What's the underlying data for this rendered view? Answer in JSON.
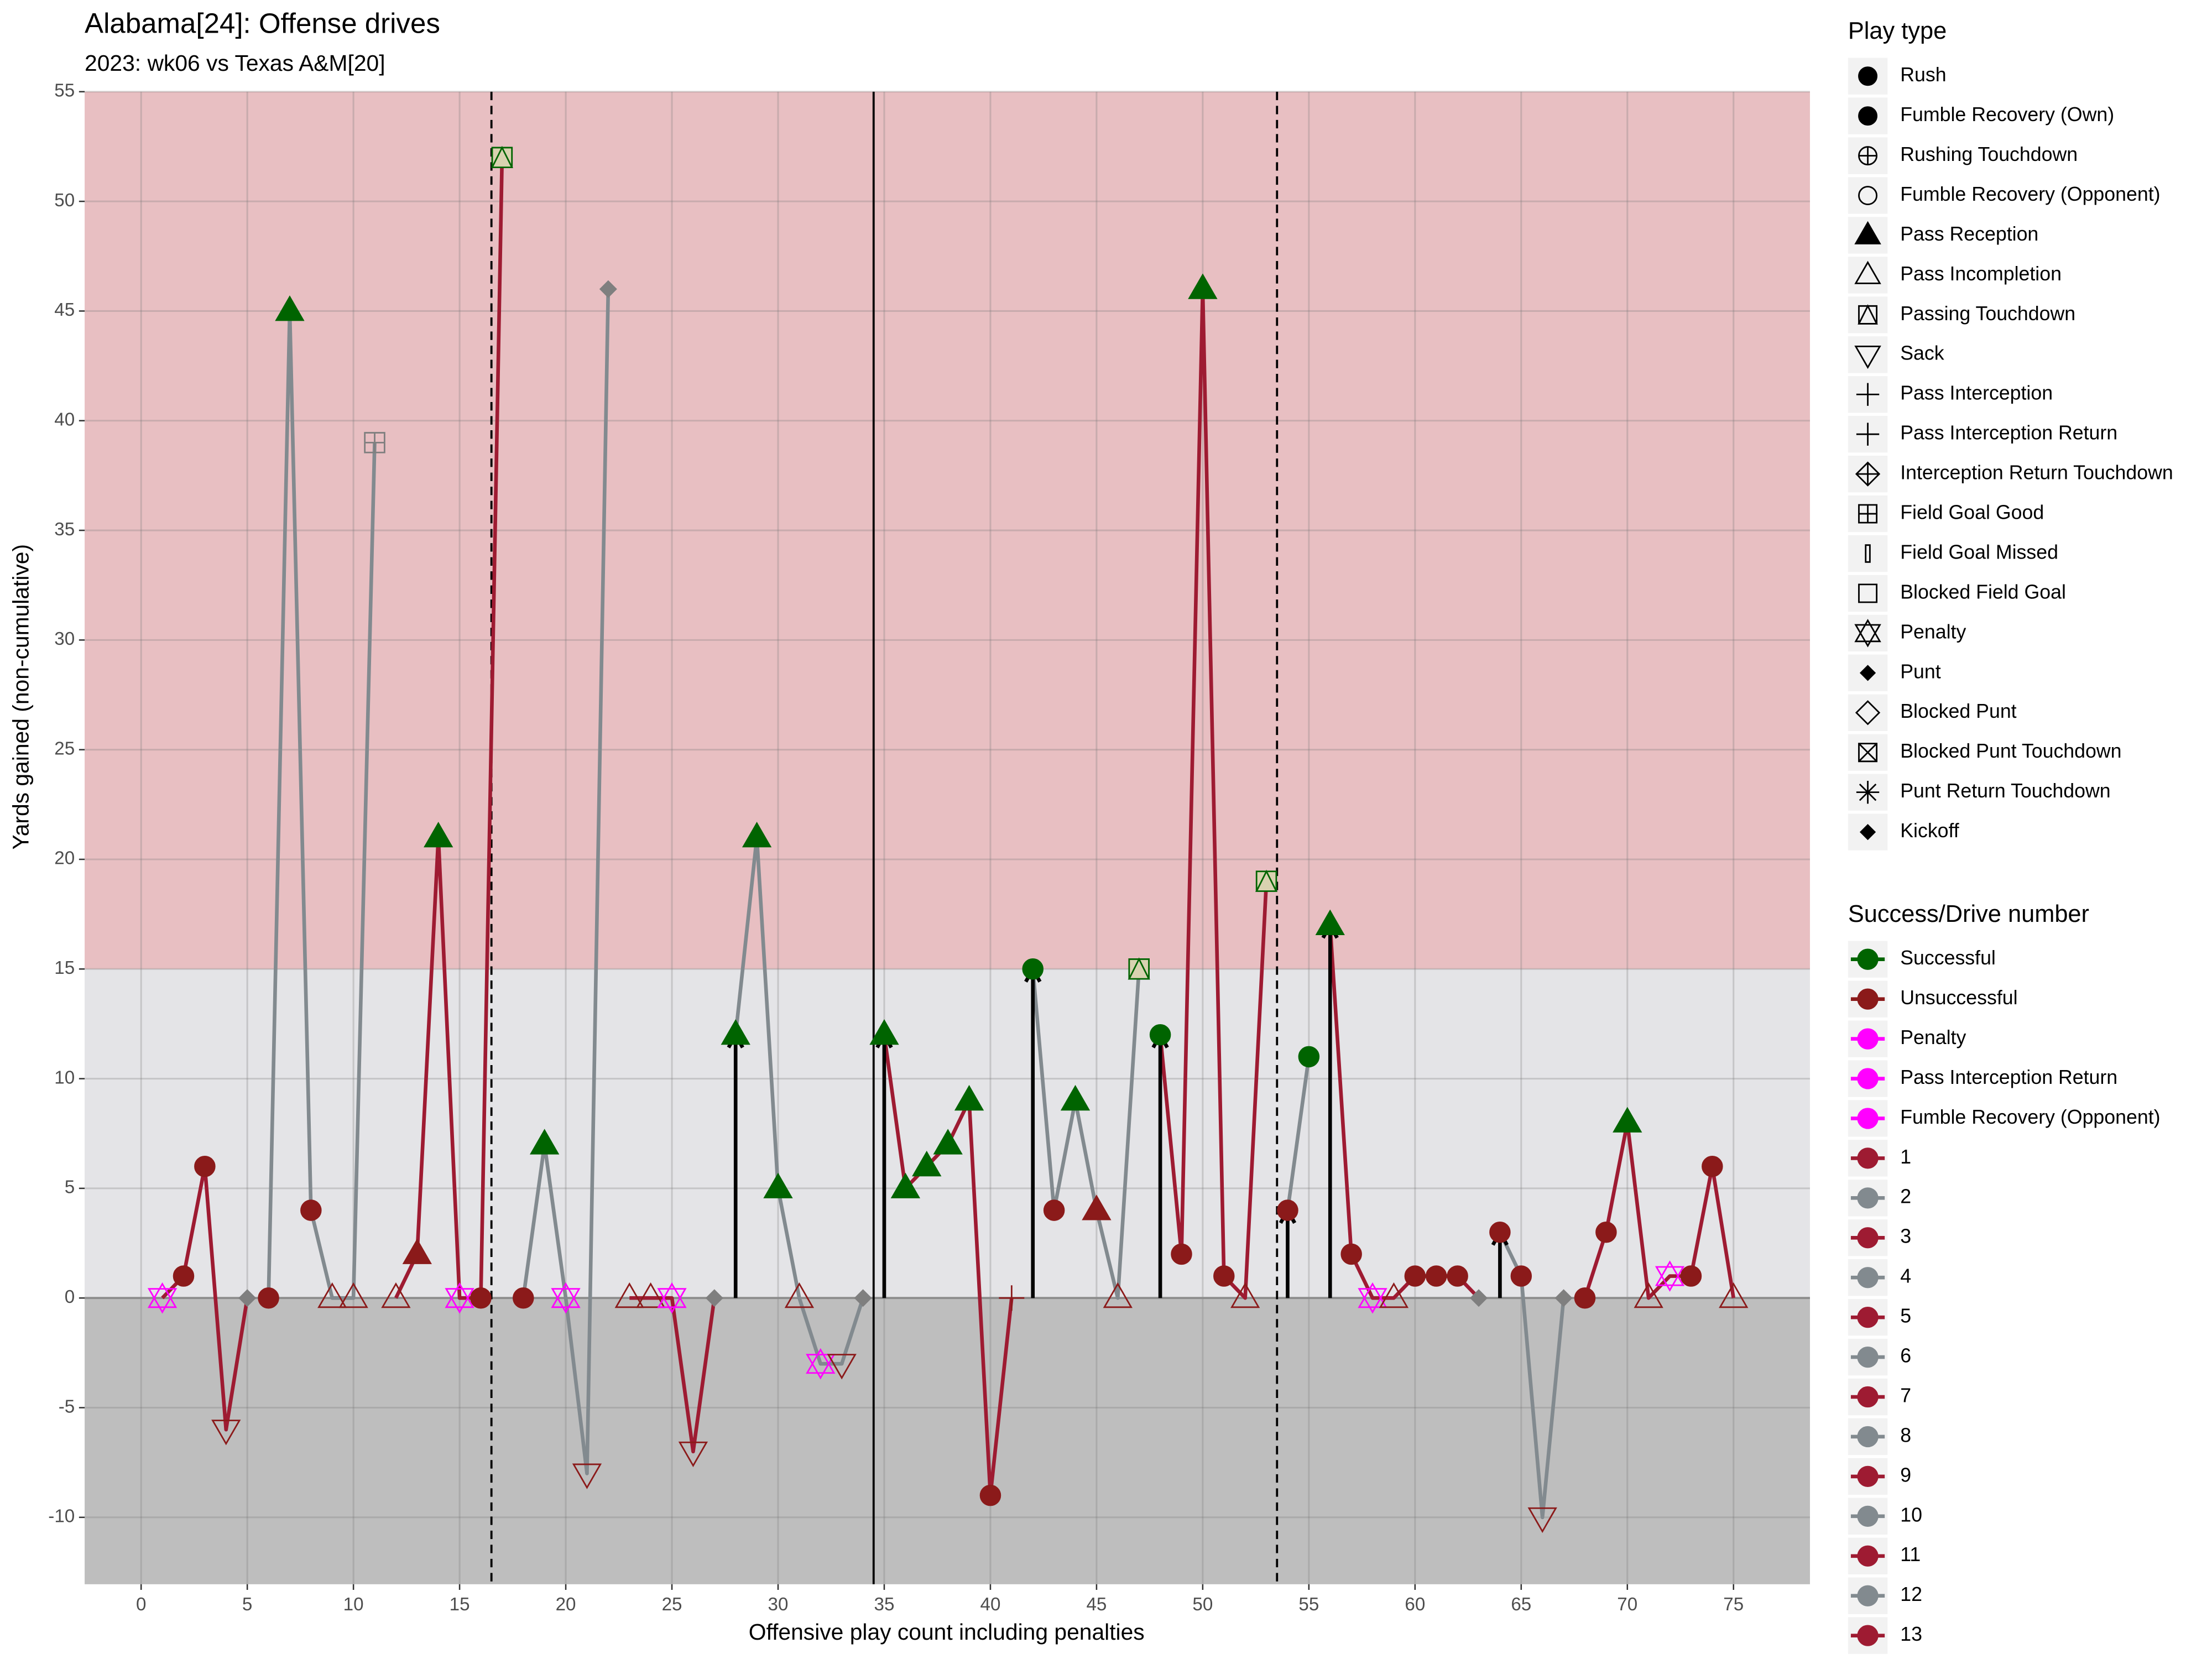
{
  "chart_data": {
    "type": "scatter",
    "title": "Alabama[24]: Offense drives",
    "subtitle": "2023: wk06 vs Texas A&M[20]",
    "x_label": "Offensive play count including penalties",
    "y_label": "Yards gained (non-cumulative)",
    "xlim": [
      -2.66,
      78.6
    ],
    "ylim": [
      -13.05,
      55
    ],
    "xticks": [
      0,
      5,
      10,
      15,
      20,
      25,
      30,
      35,
      40,
      45,
      50,
      55,
      60,
      65,
      70,
      75
    ],
    "yticks": [
      -10,
      -5,
      0,
      5,
      10,
      15,
      20,
      25,
      30,
      35,
      40,
      45,
      50,
      55
    ],
    "grid": true,
    "zones": [
      {
        "from": 15,
        "to": 55,
        "color": "#e8bfc2"
      },
      {
        "from": 0,
        "to": 15,
        "color": "#e4e4e7"
      },
      {
        "from": -13.05,
        "to": 0,
        "color": "#bebebe"
      }
    ],
    "quarter_lines": [
      16.5,
      53.5
    ],
    "half_line": 34.5,
    "arrows": [
      28,
      35,
      42,
      48,
      54,
      56,
      64
    ],
    "neutral_color": "#7f7f7f",
    "x": [
      1,
      2,
      3,
      4,
      5,
      6,
      7,
      8,
      9,
      10,
      11,
      12,
      13,
      14,
      15,
      16,
      17,
      18,
      19,
      20,
      21,
      22,
      23,
      24,
      25,
      26,
      27,
      28,
      29,
      30,
      31,
      32,
      33,
      34,
      35,
      36,
      37,
      38,
      39,
      40,
      41,
      42,
      43,
      44,
      45,
      46,
      47,
      48,
      49,
      50,
      51,
      52,
      53,
      54,
      55,
      56,
      57,
      58,
      59,
      60,
      61,
      62,
      63,
      64,
      65,
      66,
      67,
      68,
      69,
      70,
      71,
      72,
      73,
      74,
      75
    ],
    "values": [
      0,
      1,
      6,
      -6,
      0,
      0,
      45,
      4,
      0,
      0,
      39,
      0,
      2,
      21,
      0,
      0,
      52,
      0,
      7,
      0,
      -8,
      46,
      0,
      0,
      0,
      -7,
      0,
      12,
      21,
      5,
      0,
      -3,
      -3,
      0,
      12,
      5,
      6,
      7,
      9,
      -9,
      0,
      15,
      4,
      9,
      4,
      0,
      15,
      12,
      2,
      46,
      1,
      0,
      19,
      4,
      11,
      17,
      2,
      0,
      0,
      1,
      1,
      1,
      0,
      3,
      1,
      -10,
      0,
      0,
      3,
      8,
      0,
      1,
      1,
      6,
      0
    ],
    "drive": [
      1,
      1,
      1,
      1,
      1,
      2,
      2,
      2,
      2,
      2,
      2,
      3,
      3,
      3,
      3,
      3,
      3,
      4,
      4,
      4,
      4,
      4,
      5,
      5,
      5,
      5,
      5,
      6,
      6,
      6,
      6,
      6,
      6,
      6,
      7,
      7,
      7,
      7,
      7,
      7,
      7,
      8,
      8,
      8,
      8,
      8,
      8,
      9,
      9,
      9,
      9,
      9,
      9,
      10,
      10,
      11,
      11,
      11,
      11,
      11,
      11,
      11,
      11,
      12,
      12,
      12,
      12,
      13,
      13,
      13,
      13,
      13,
      13,
      13,
      13
    ],
    "play_type": [
      "Penalty",
      "Rush",
      "Rush",
      "Sack",
      "Punt",
      "Rush",
      "Pass Reception",
      "Rush",
      "Pass Incompletion",
      "Pass Incompletion",
      "Field Goal Good",
      "Pass Incompletion",
      "Pass Reception",
      "Pass Reception",
      "Penalty",
      "Rush",
      "Passing Touchdown",
      "Rush",
      "Pass Reception",
      "Penalty",
      "Sack",
      "Punt",
      "Pass Incompletion",
      "Pass Incompletion",
      "Penalty",
      "Sack",
      "Punt",
      "Pass Reception",
      "Pass Reception",
      "Pass Reception",
      "Pass Incompletion",
      "Penalty",
      "Sack",
      "Punt",
      "Pass Reception",
      "Pass Reception",
      "Pass Reception",
      "Pass Reception",
      "Pass Reception",
      "Rush",
      "Pass Interception",
      "Rush",
      "Rush",
      "Pass Reception",
      "Pass Reception",
      "Pass Incompletion",
      "Passing Touchdown",
      "Rush",
      "Rush",
      "Pass Reception",
      "Rush",
      "Pass Incompletion",
      "Passing Touchdown",
      "Rush",
      "Rush",
      "Pass Reception",
      "Rush",
      "Penalty",
      "Pass Incompletion",
      "Rush",
      "Rush",
      "Rush",
      "Punt",
      "Rush",
      "Rush",
      "Sack",
      "Punt",
      "Rush",
      "Rush",
      "Pass Reception",
      "Pass Incompletion",
      "Penalty",
      "Rush",
      "Rush",
      "Pass Incompletion"
    ],
    "outcome": [
      "Penalty",
      "Unsuccessful",
      "Unsuccessful",
      "Unsuccessful",
      null,
      "Unsuccessful",
      "Successful",
      "Unsuccessful",
      "Unsuccessful",
      "Unsuccessful",
      null,
      "Unsuccessful",
      "Unsuccessful",
      "Successful",
      "Penalty",
      "Unsuccessful",
      "Successful",
      "Unsuccessful",
      "Successful",
      "Penalty",
      "Unsuccessful",
      null,
      "Unsuccessful",
      "Unsuccessful",
      "Penalty",
      "Unsuccessful",
      null,
      "Successful",
      "Successful",
      "Successful",
      "Unsuccessful",
      "Penalty",
      "Unsuccessful",
      null,
      "Successful",
      "Successful",
      "Successful",
      "Successful",
      "Successful",
      "Unsuccessful",
      "Unsuccessful",
      "Successful",
      "Unsuccessful",
      "Successful",
      "Unsuccessful",
      "Unsuccessful",
      "Successful",
      "Successful",
      "Unsuccessful",
      "Successful",
      "Unsuccessful",
      "Unsuccessful",
      "Successful",
      "Unsuccessful",
      "Successful",
      "Successful",
      "Unsuccessful",
      "Penalty",
      "Unsuccessful",
      "Unsuccessful",
      "Unsuccessful",
      "Unsuccessful",
      null,
      "Unsuccessful",
      "Unsuccessful",
      "Unsuccessful",
      null,
      "Unsuccessful",
      "Unsuccessful",
      "Successful",
      "Unsuccessful",
      "Penalty",
      "Unsuccessful",
      "Unsuccessful",
      "Unsuccessful"
    ],
    "legend_play_type": {
      "title": "Play type",
      "items": [
        "Rush",
        "Fumble Recovery (Own)",
        "Rushing Touchdown",
        "Fumble Recovery (Opponent)",
        "Pass Reception",
        "Pass Incompletion",
        "Passing Touchdown",
        "Sack",
        "Pass Interception",
        "Pass Interception Return",
        "Interception Return Touchdown",
        "Field Goal Good",
        "Field Goal Missed",
        "Blocked Field Goal",
        "Penalty",
        "Punt",
        "Blocked Punt",
        "Blocked Punt Touchdown",
        "Punt Return Touchdown",
        "Kickoff"
      ]
    },
    "legend_success": {
      "title": "Success/Drive number",
      "items": [
        {
          "name": "Successful",
          "color": "#006400"
        },
        {
          "name": "Unsuccessful",
          "color": "#8b1a1a"
        },
        {
          "name": "Penalty",
          "color": "#ff00ff"
        },
        {
          "name": "Pass Interception Return",
          "color": "#ff00ff"
        },
        {
          "name": "Fumble Recovery (Opponent)",
          "color": "#ff00ff"
        },
        {
          "name": 1,
          "color": "#9e1b32"
        },
        {
          "name": 2,
          "color": "#828a8f"
        },
        {
          "name": 3,
          "color": "#9e1b32"
        },
        {
          "name": 4,
          "color": "#828a8f"
        },
        {
          "name": 5,
          "color": "#9e1b32"
        },
        {
          "name": 6,
          "color": "#828a8f"
        },
        {
          "name": 7,
          "color": "#9e1b32"
        },
        {
          "name": 8,
          "color": "#828a8f"
        },
        {
          "name": 9,
          "color": "#9e1b32"
        },
        {
          "name": 10,
          "color": "#828a8f"
        },
        {
          "name": 11,
          "color": "#9e1b32"
        },
        {
          "name": 12,
          "color": "#828a8f"
        },
        {
          "name": 13,
          "color": "#9e1b32"
        }
      ]
    }
  }
}
